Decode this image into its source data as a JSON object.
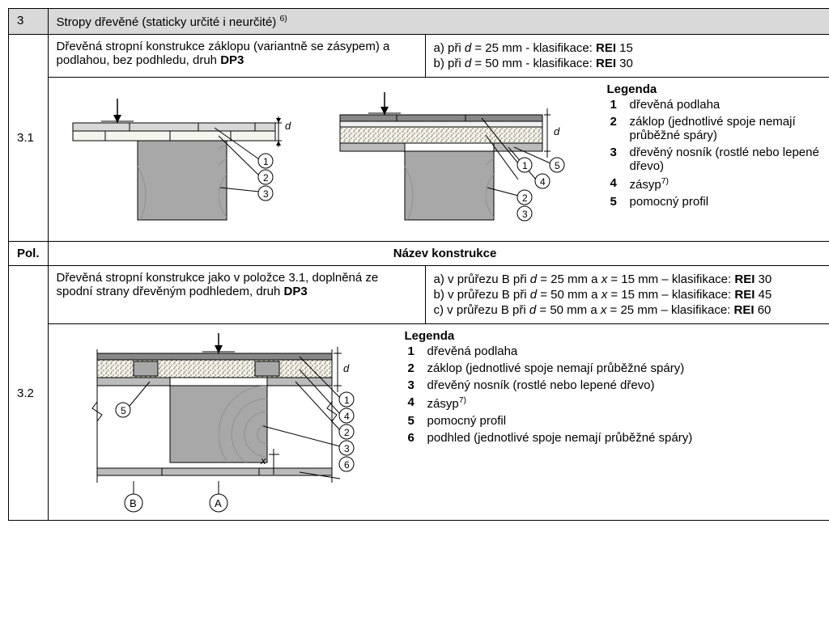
{
  "row3": {
    "num": "3",
    "title_pre": "Stropy dřevěné (staticky určité i neurčité) ",
    "title_sup": "6)"
  },
  "row31": {
    "num": "3.1",
    "desc_a": "Dřevěná stropní konstrukce záklopu (variantně se zásypem) a podlahou, bez podhledu, druh ",
    "desc_b": "DP3",
    "opts": [
      {
        "l": "a)",
        "pre": "  při ",
        "v": "d",
        "mid": " = 25 mm - klasifikace: ",
        "cls": "REI",
        "post": " 15"
      },
      {
        "l": "b)",
        "pre": "  při ",
        "v": "d",
        "mid": " = 50 mm - klasifikace: ",
        "cls": "REI",
        "post": " 30"
      }
    ],
    "legend_title": "Legenda",
    "legend": [
      {
        "n": "1",
        "t": "dřevěná podlaha"
      },
      {
        "n": "2",
        "t": "záklop (jednotlivé spoje nemají průběžné spáry)"
      },
      {
        "n": "3",
        "t": "dřevěný nosník (rostlé nebo lepené dřevo)"
      },
      {
        "n": "4",
        "t": "zásyp",
        "sup": "7)"
      },
      {
        "n": "5",
        "t": "pomocný profil"
      }
    ]
  },
  "pol_hdr": {
    "pol": "Pol.",
    "name": "Název konstrukce"
  },
  "row32": {
    "num": "3.2",
    "desc_a": "Dřevěná stropní konstrukce jako v položce 3.1, doplněná ze spodní strany dřevěným podhledem, druh ",
    "desc_b": "DP3",
    "opts": [
      {
        "l": "a)",
        "pre": "  v průřezu B při ",
        "v1": "d",
        "m1": " = 25 mm a ",
        "v2": "x",
        "m2": " = 15 mm – klasifikace: ",
        "cls": "REI",
        "post": " 30"
      },
      {
        "l": "b)",
        "pre": "  v průřezu B při ",
        "v1": "d",
        "m1": " = 50 mm a ",
        "v2": "x",
        "m2": " = 15 mm – klasifikace: ",
        "cls": "REI",
        "post": " 45"
      },
      {
        "l": "c)",
        "pre": "  v průřezu B při ",
        "v1": "d",
        "m1": " = 50 mm a ",
        "v2": "x",
        "m2": " = 25 mm – klasifikace: ",
        "cls": "REI",
        "post": " 60"
      }
    ],
    "legend_title": "Legenda",
    "legend": [
      {
        "n": "1",
        "t": "dřevěná podlaha"
      },
      {
        "n": "2",
        "t": "záklop (jednotlivé spoje nemají průběžné spáry)"
      },
      {
        "n": "3",
        "t": "dřevěný nosník (rostlé nebo lepené dřevo)"
      },
      {
        "n": "4",
        "t": "zásyp",
        "sup": "7)"
      },
      {
        "n": "5",
        "t": "pomocný profil"
      },
      {
        "n": "6",
        "t": "podhled (jednotlivé spoje nemají průběžné spáry)"
      }
    ]
  },
  "colors": {
    "beam": "#a8a8a8",
    "beam_dark": "#8f8f8f",
    "floor": "#e8e8e8",
    "floor_dark": "#888",
    "fill": "#fdfcf7",
    "line": "#000",
    "callout": "#000"
  }
}
